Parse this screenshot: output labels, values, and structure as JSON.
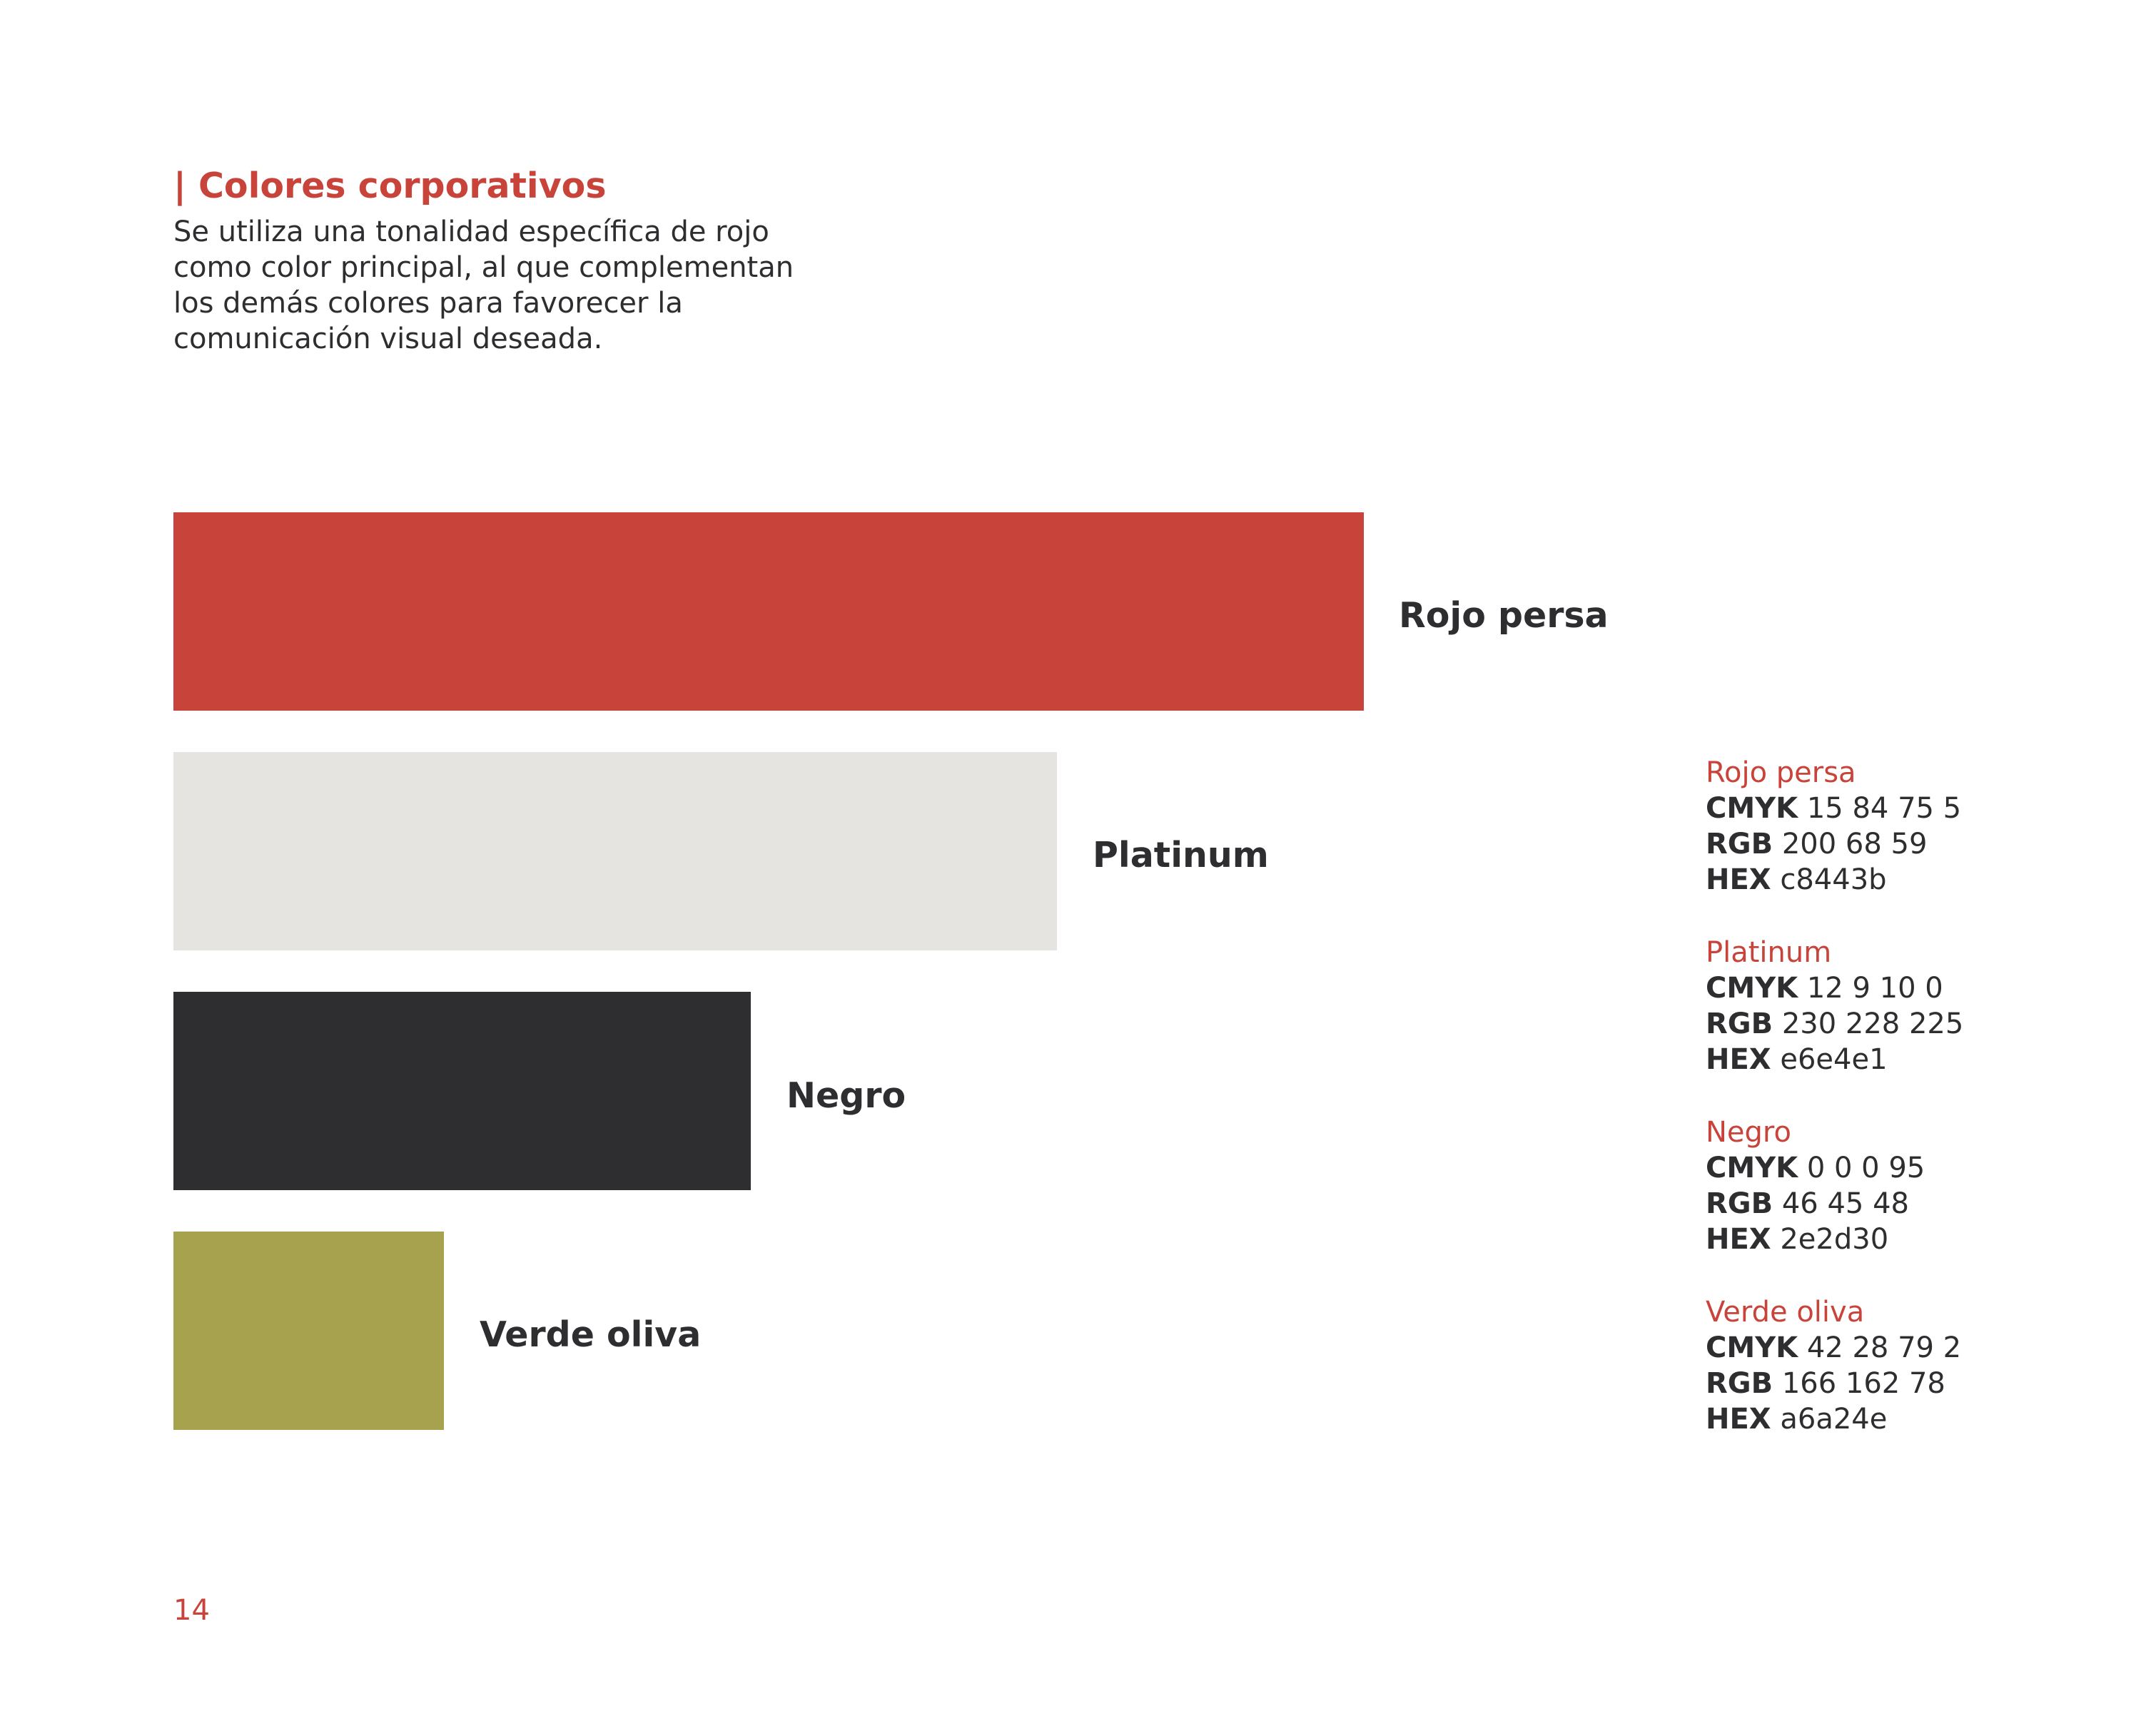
{
  "section": {
    "title": "| Colores corporativos",
    "intro_lines": [
      "Se utiliza una tonalidad específica de rojo",
      "como color principal, al que complementan",
      "los demás colores para favorecer la",
      "comunicación visual deseada."
    ]
  },
  "swatches": [
    {
      "label": "Rojo persa",
      "color": "#c8443b"
    },
    {
      "label": "Platinum",
      "color": "#e6e4e1"
    },
    {
      "label": "Negro",
      "color": "#2e2d30"
    },
    {
      "label": "Verde oliva",
      "color": "#a6a24e"
    }
  ],
  "specs": [
    {
      "name": "Rojo persa",
      "cmyk_label": "CMYK",
      "cmyk": "15 84 75 5",
      "rgb_label": "RGB",
      "rgb": "200 68 59",
      "hex_label": "HEX",
      "hex": "c8443b"
    },
    {
      "name": "Platinum",
      "cmyk_label": "CMYK",
      "cmyk": "12 9 10 0",
      "rgb_label": "RGB",
      "rgb": "230 228 225",
      "hex_label": "HEX",
      "hex": "e6e4e1"
    },
    {
      "name": "Negro",
      "cmyk_label": "CMYK",
      "cmyk": "0 0 0 95",
      "rgb_label": "RGB",
      "rgb": "46 45 48",
      "hex_label": "HEX",
      "hex": "2e2d30"
    },
    {
      "name": "Verde oliva",
      "cmyk_label": "CMYK",
      "cmyk": "42 28 79 2",
      "rgb_label": "RGB",
      "rgb": "166 162 78",
      "hex_label": "HEX",
      "hex": "a6a24e"
    }
  ],
  "page_number": "14"
}
